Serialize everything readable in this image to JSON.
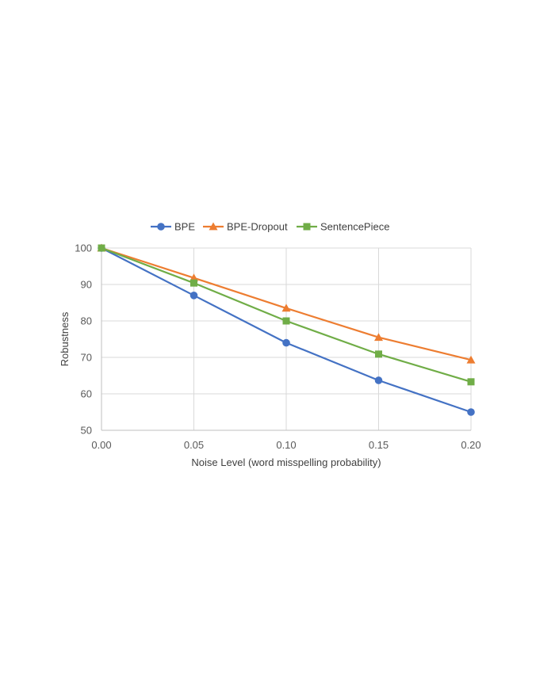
{
  "chart_data": {
    "type": "line",
    "title": "",
    "xlabel": "Noise Level (word misspelling probability)",
    "ylabel": "Robustness",
    "x": [
      0.0,
      0.05,
      0.1,
      0.15,
      0.2
    ],
    "x_tick_labels": [
      "0.00",
      "0.05",
      "0.10",
      "0.15",
      "0.20"
    ],
    "y_ticks": [
      50,
      60,
      70,
      80,
      90,
      100
    ],
    "y_tick_labels": [
      "50",
      "60",
      "70",
      "80",
      "90",
      "100"
    ],
    "xlim": [
      0.0,
      0.2
    ],
    "ylim": [
      50,
      100
    ],
    "grid": true,
    "legend_position": "top",
    "series": [
      {
        "name": "BPE",
        "values": [
          100,
          87,
          74,
          63.7,
          55
        ],
        "color": "#4472C4",
        "marker": "circle"
      },
      {
        "name": "BPE-Dropout",
        "values": [
          100,
          91.8,
          83.5,
          75.5,
          69.3
        ],
        "color": "#ED7D31",
        "marker": "triangle"
      },
      {
        "name": "SentencePiece",
        "values": [
          100,
          90.4,
          80,
          70.9,
          63.3
        ],
        "color": "#70AD47",
        "marker": "square"
      }
    ]
  }
}
